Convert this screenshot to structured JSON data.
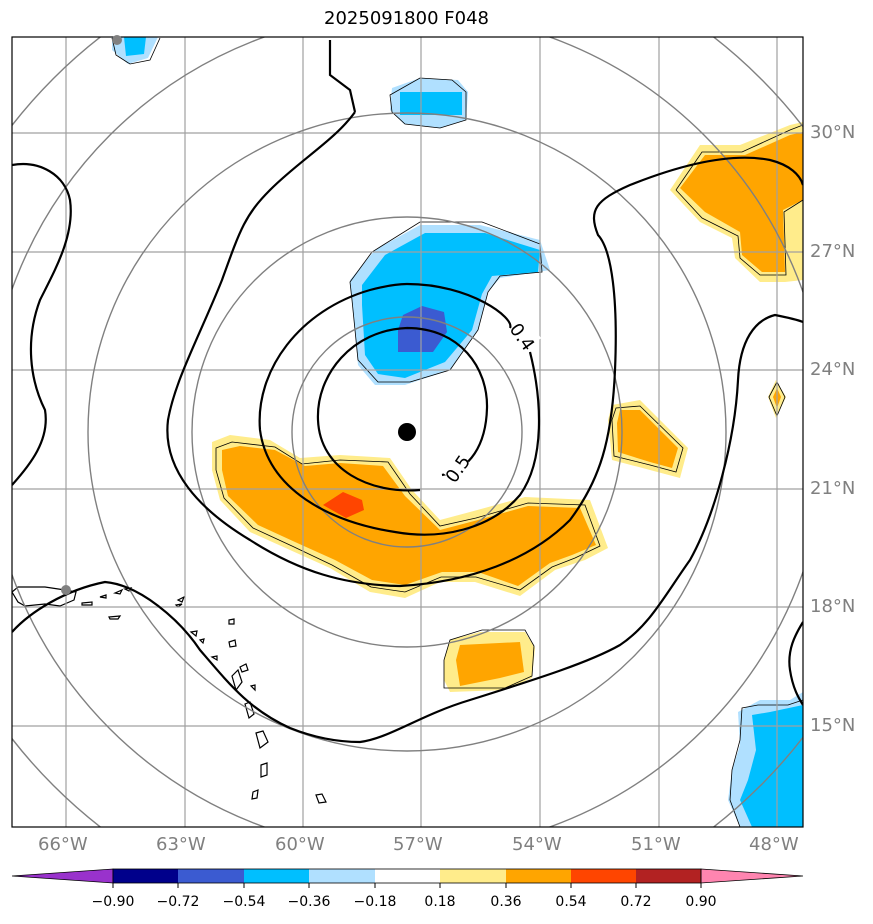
{
  "title": "2025091800 F048",
  "lat_labels": [
    "30°N",
    "27°N",
    "24°N",
    "21°N",
    "18°N",
    "15°N"
  ],
  "lon_labels": [
    "66°W",
    "63°W",
    "60°W",
    "57°W",
    "54°W",
    "51°W",
    "48°W"
  ],
  "contour_labels": [
    "0.4",
    "0.5"
  ],
  "colorbar": {
    "tick_labels": [
      "−0.90",
      "−0.72",
      "−0.54",
      "−0.36",
      "−0.18",
      "0.18",
      "0.36",
      "0.54",
      "0.72",
      "0.90"
    ],
    "colors": [
      "#9932cc",
      "#00008b",
      "#3b5bd1",
      "#00bfff",
      "#b0e0ff",
      "#ffffff",
      "#ffec8b",
      "#ffa500",
      "#ff4500",
      "#b22222",
      "#ff85b0"
    ]
  },
  "colors": {
    "positive_light": "#ffec8b",
    "positive": "#ffa500",
    "positive_strong": "#ff4500",
    "negative_light": "#b0e0ff",
    "negative": "#00bfff",
    "negative_strong": "#3b5bd1",
    "range_rings": "#808080",
    "gridlines": "#a0a0a0",
    "contours": "#000000"
  }
}
